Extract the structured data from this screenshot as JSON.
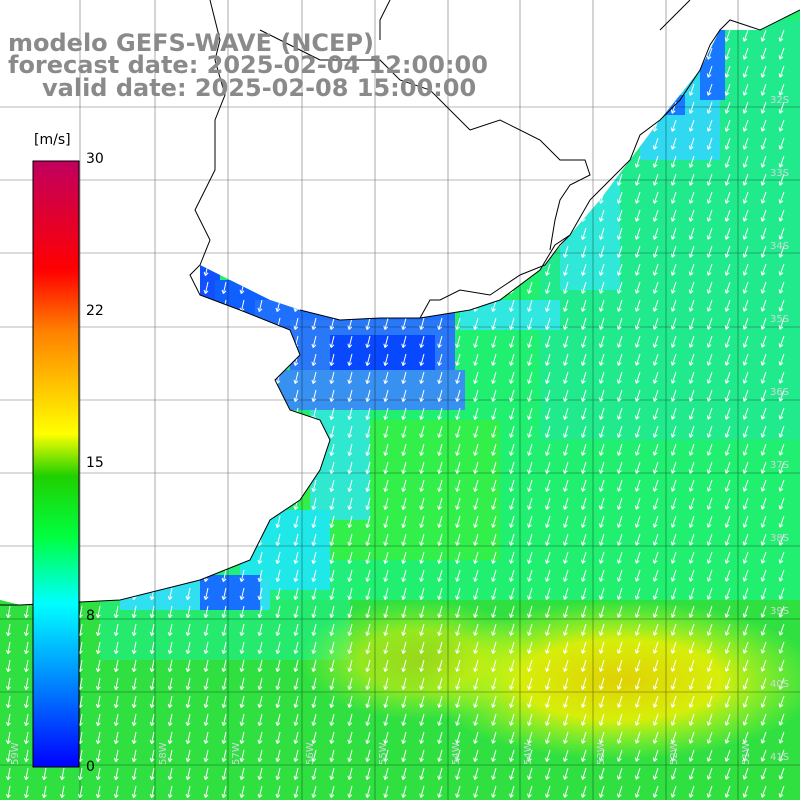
{
  "title": {
    "line1": "modelo GEFS-WAVE (NCEP)",
    "line2": "forecast date: 2025-02-04 12:00:00",
    "line3": "valid date: 2025-02-08 15:00:00"
  },
  "colorbar": {
    "unit": "[m/s]",
    "ticks": [
      "30",
      "22",
      "15",
      "8",
      "0"
    ],
    "tick_values": [
      30,
      22,
      15,
      8,
      0
    ],
    "range": [
      0,
      30
    ],
    "colors": [
      "#0000ff",
      "#0090ff",
      "#00ffff",
      "#00ff40",
      "#20d000",
      "#ffff00",
      "#ff8000",
      "#ff0000",
      "#c00060"
    ]
  },
  "latitudes": [
    "32S",
    "33S",
    "34S",
    "35S",
    "36S",
    "37S",
    "38S",
    "39S",
    "40S",
    "41S"
  ],
  "longitudes": [
    "59W",
    "58W",
    "57W",
    "56W",
    "55W",
    "54W",
    "53W",
    "52W",
    "51W"
  ],
  "field": {
    "variable": "wind speed",
    "vector_direction": "south-southwest"
  }
}
